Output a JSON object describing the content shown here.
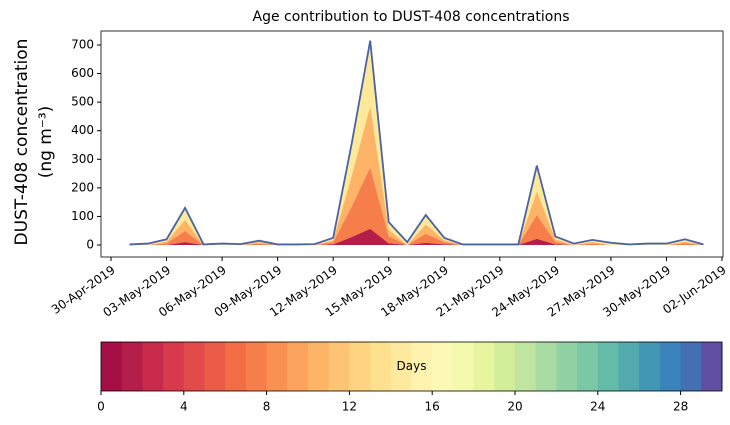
{
  "chart_data": {
    "type": "stacked_area",
    "title": "Age contribution to DUST-408 concentrations",
    "ylabel": [
      "DUST-408 concentration",
      "(ng m⁻³)"
    ],
    "x": [
      "2019-05-01",
      "2019-05-02",
      "2019-05-03",
      "2019-05-04",
      "2019-05-05",
      "2019-05-06",
      "2019-05-07",
      "2019-05-08",
      "2019-05-09",
      "2019-05-10",
      "2019-05-11",
      "2019-05-12",
      "2019-05-13",
      "2019-05-14",
      "2019-05-15",
      "2019-05-16",
      "2019-05-17",
      "2019-05-18",
      "2019-05-19",
      "2019-05-20",
      "2019-05-21",
      "2019-05-22",
      "2019-05-23",
      "2019-05-24",
      "2019-05-25",
      "2019-05-26",
      "2019-05-27",
      "2019-05-28",
      "2019-05-29",
      "2019-05-30",
      "2019-05-31",
      "2019-06-01"
    ],
    "series": [
      {
        "color": "#b51d4a",
        "values": [
          0,
          0,
          0,
          10,
          0,
          0,
          0,
          0,
          0,
          0,
          0,
          2,
          28,
          57,
          6,
          0,
          8,
          2,
          0,
          0,
          0,
          0,
          22,
          2,
          0,
          0,
          0,
          0,
          0,
          0,
          0,
          0
        ]
      },
      {
        "color": "#f67e4b",
        "values": [
          0,
          0,
          6,
          39,
          0,
          0,
          0,
          5,
          0,
          0,
          0,
          8,
          107,
          215,
          24,
          0,
          32,
          8,
          0,
          0,
          0,
          0,
          83,
          9,
          0,
          5,
          0,
          0,
          0,
          0,
          6,
          0
        ]
      },
      {
        "color": "#fdb466",
        "values": [
          0,
          0,
          6,
          39,
          0,
          0,
          0,
          5,
          0,
          0,
          0,
          7,
          107,
          215,
          24,
          0,
          32,
          7,
          0,
          0,
          0,
          0,
          83,
          9,
          0,
          6,
          0,
          0,
          0,
          0,
          6,
          0
        ]
      },
      {
        "color": "#fee99a",
        "values": [
          2,
          5,
          8,
          42,
          2,
          5,
          3,
          5,
          2,
          2,
          3,
          8,
          113,
          228,
          26,
          10,
          33,
          8,
          2,
          2,
          2,
          2,
          90,
          10,
          5,
          7,
          8,
          2,
          5,
          5,
          8,
          2
        ]
      }
    ],
    "total": {
      "color": "#4a62a6",
      "values": [
        2,
        5,
        20,
        130,
        2,
        5,
        3,
        15,
        2,
        2,
        3,
        25,
        355,
        715,
        80,
        10,
        105,
        25,
        2,
        2,
        2,
        2,
        278,
        30,
        5,
        18,
        8,
        2,
        5,
        5,
        20,
        2
      ]
    },
    "xlim": [
      "2019-04-30",
      "2019-06-02"
    ],
    "xticks": [
      {
        "value": "2019-04-30",
        "label": "30-Apr-2019"
      },
      {
        "value": "2019-05-03",
        "label": "03-May-2019"
      },
      {
        "value": "2019-05-06",
        "label": "06-May-2019"
      },
      {
        "value": "2019-05-09",
        "label": "09-May-2019"
      },
      {
        "value": "2019-05-12",
        "label": "12-May-2019"
      },
      {
        "value": "2019-05-15",
        "label": "15-May-2019"
      },
      {
        "value": "2019-05-18",
        "label": "18-May-2019"
      },
      {
        "value": "2019-05-21",
        "label": "21-May-2019"
      },
      {
        "value": "2019-05-24",
        "label": "24-May-2019"
      },
      {
        "value": "2019-05-27",
        "label": "27-May-2019"
      },
      {
        "value": "2019-05-30",
        "label": "30-May-2019"
      },
      {
        "value": "2019-06-02",
        "label": "02-Jun-2019"
      }
    ],
    "ylim": [
      -42,
      749
    ],
    "yticks": [
      0,
      100,
      200,
      300,
      400,
      500,
      600,
      700
    ],
    "colorbar": {
      "label": "Days",
      "lim": [
        0,
        30
      ],
      "ticks": [
        0,
        4,
        8,
        12,
        16,
        20,
        24,
        28
      ],
      "colors": [
        "#a50f46",
        "#b51d4a",
        "#c82a4b",
        "#d83a4b",
        "#e24b4a",
        "#eb5c48",
        "#f36d44",
        "#f67e4b",
        "#f99153",
        "#fba35c",
        "#fdb466",
        "#fdc474",
        "#fed382",
        "#fee08e",
        "#feea9e",
        "#fff3ae",
        "#fcf9b5",
        "#f3faad",
        "#e6f59e",
        "#d3ee9b",
        "#bfe5a0",
        "#a8dca4",
        "#91d2a4",
        "#7ac8a5",
        "#64bca8",
        "#52aaae",
        "#4297b5",
        "#3a84bb",
        "#4470b1",
        "#5e4fa2"
      ]
    }
  }
}
